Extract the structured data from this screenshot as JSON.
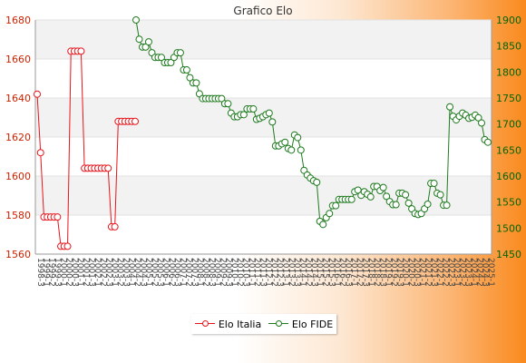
{
  "chart_data": {
    "type": "line",
    "title": "Grafico Elo",
    "xlabel": "",
    "ylabel": "",
    "y_left": {
      "range": [
        1560,
        1680
      ],
      "ticks": [
        1560,
        1580,
        1600,
        1620,
        1640,
        1660,
        1680
      ]
    },
    "y_right": {
      "range": [
        1450,
        1900
      ],
      "ticks": [
        1450,
        1500,
        1550,
        1600,
        1650,
        1700,
        1750,
        1800,
        1850,
        1900
      ]
    },
    "grid": "horizontal bands",
    "legend_position": "bottom-center",
    "colors": {
      "italia": "#e8141a",
      "fide": "#1f7a1f",
      "band": "#f2f2f2",
      "axis_left": "#cc2200",
      "axis_right": "#006600"
    },
    "series": [
      {
        "name": "Elo Italia",
        "axis": "left",
        "values": [
          1642,
          1612,
          1579,
          1579,
          1579,
          1579,
          1579,
          1564,
          1564,
          1564,
          1664,
          1664,
          1664,
          1664,
          1604,
          1604,
          1604,
          1604,
          1604,
          1604,
          1604,
          1604,
          1574,
          1574,
          1628,
          1628,
          1628,
          1628,
          1628,
          1628
        ]
      },
      {
        "name": "Elo FIDE",
        "axis": "right",
        "values": [
          1900,
          1863,
          1848,
          1848,
          1858,
          1837,
          1828,
          1828,
          1828,
          1818,
          1818,
          1818,
          1828,
          1837,
          1837,
          1804,
          1804,
          1789,
          1779,
          1779,
          1758,
          1749,
          1749,
          1749,
          1749,
          1749,
          1749,
          1749,
          1739,
          1739,
          1721,
          1714,
          1714,
          1718,
          1718,
          1729,
          1729,
          1729,
          1709,
          1711,
          1714,
          1718,
          1721,
          1704,
          1658,
          1658,
          1662,
          1665,
          1653,
          1650,
          1679,
          1674,
          1650,
          1611,
          1602,
          1596,
          1591,
          1588,
          1513,
          1507,
          1520,
          1528,
          1543,
          1543,
          1555,
          1555,
          1555,
          1555,
          1555,
          1570,
          1573,
          1563,
          1570,
          1565,
          1560,
          1580,
          1580,
          1572,
          1578,
          1561,
          1551,
          1545,
          1545,
          1567,
          1567,
          1564,
          1548,
          1537,
          1528,
          1526,
          1528,
          1537,
          1546,
          1586,
          1586,
          1567,
          1564,
          1544,
          1544,
          1733,
          1715,
          1708,
          1715,
          1721,
          1717,
          1711,
          1713,
          1717,
          1712,
          1702,
          1670,
          1665
        ]
      }
    ],
    "x_tick_labels": [
      "1998-3",
      "1999-1",
      "1999-2",
      "1999-3",
      "2000-1",
      "2000-2",
      "2000-3",
      "2001-1",
      "2001-2",
      "2001-3",
      "2002-1",
      "2002-2",
      "2002-3",
      "2003-1",
      "2003-2",
      "2003-3",
      "2004-1",
      "2004-2",
      "2004-3",
      "2005-1",
      "2005-2",
      "2005-3",
      "2006-1",
      "2006-2",
      "2006-3",
      "2007-1",
      "2007-2",
      "2007-3",
      "2008-1",
      "2008-2",
      "2008-3",
      "2009-1",
      "2009-2",
      "2009-3",
      "2010-1",
      "2010-2",
      "2010-3",
      "2011-1",
      "2011-2",
      "2011-3",
      "2012-1",
      "2012-2",
      "2012-3",
      "2013-1",
      "2013-2",
      "2013-3",
      "2014-1",
      "2014-2",
      "2014-3",
      "2015-1",
      "2015-2",
      "2015-3",
      "2016-1",
      "2016-2",
      "2016-3",
      "2017-1",
      "2017-2",
      "2017-3",
      "2018-1",
      "2018-2",
      "2018-3",
      "2019-1",
      "2019-2",
      "2019-3",
      "2020-1",
      "2020-2",
      "2020-3",
      "2021-1",
      "2021-2",
      "2021-3",
      "2022-1",
      "2022-2",
      "2022-3",
      "2023-1",
      "2023-2",
      "2023-3",
      "2024-1",
      "2024-2",
      "2024-3",
      "2025-1"
    ]
  }
}
